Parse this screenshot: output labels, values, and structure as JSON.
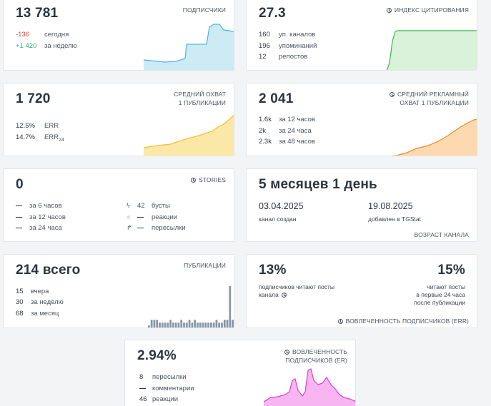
{
  "subscribers": {
    "value": "13 781",
    "label": "ПОДПИСЧИКИ",
    "today_delta": "-136",
    "today_label": "сегодня",
    "week_delta": "+1 420",
    "week_label": "за неделю",
    "colors": {
      "line": "#4bb7d9",
      "fill": "#cdeaf5"
    }
  },
  "citation": {
    "value": "27.3",
    "label": "ИНДЕКС ЦИТИРОВАНИЯ",
    "rows": [
      {
        "value": "160",
        "text": "уп. каналов"
      },
      {
        "value": "196",
        "text": "упоминаний"
      },
      {
        "value": "12",
        "text": "репостов"
      }
    ],
    "colors": {
      "line": "#3bb54a",
      "fill": "#d9f2d9"
    }
  },
  "reach": {
    "value": "1 720",
    "label_line1": "СРЕДНИЙ ОХВАТ",
    "label_line2": "1 ПУБЛИКАЦИИ",
    "err_value": "12.5%",
    "err_label": "ERR",
    "err24_value": "14.7%",
    "err24_label": "ERR",
    "err24_sub": "24",
    "colors": {
      "line": "#f2c12e",
      "fill": "#fbe8a6"
    }
  },
  "ad_reach": {
    "value": "2 041",
    "label_line1": "СРЕДНИЙ РЕКЛАМНЫЙ",
    "label_line2": "ОХВАТ 1 ПУБЛИКАЦИИ",
    "rows": [
      {
        "value": "1.6k",
        "text": "за 12 часов"
      },
      {
        "value": "2k",
        "text": "за 24 часа"
      },
      {
        "value": "2.3k",
        "text": "за 48 часов"
      }
    ],
    "colors": {
      "line": "#ef8a1e",
      "fill": "#fcd9b0"
    }
  },
  "stories": {
    "value": "0",
    "label": "STORIES",
    "left_rows": [
      {
        "text": "за 6 часов"
      },
      {
        "text": "за 12 часов"
      },
      {
        "text": "за 24 часа"
      }
    ],
    "right_rows": [
      {
        "icon": "bolt-icon",
        "glyph": "ϟ",
        "value": "42",
        "text": "бусты"
      },
      {
        "icon": "thumbs-up-icon",
        "glyph": "👍",
        "value": "",
        "text": "реакции"
      },
      {
        "icon": "share-arrow-icon",
        "glyph": "↱",
        "value": "",
        "text": "пересылки"
      }
    ]
  },
  "age": {
    "value": "5 месяцев 1 день",
    "created_date": "03.04.2025",
    "created_label": "канал создан",
    "added_date": "19.08.2025",
    "added_label": "добавлен в TGStat",
    "label": "ВОЗРАСТ КАНАЛА"
  },
  "posts": {
    "value": "214 всего",
    "label": "ПУБЛИКАЦИИ",
    "rows": [
      {
        "value": "15",
        "text": "вчера"
      },
      {
        "value": "30",
        "text": "за неделю"
      },
      {
        "value": "68",
        "text": "за месяц"
      }
    ],
    "bar_values": [
      1,
      3,
      3,
      3,
      2,
      2,
      2,
      2,
      3,
      2,
      2,
      2,
      3,
      2,
      2,
      3,
      2,
      3,
      2,
      2,
      2,
      2,
      2,
      2,
      2,
      3,
      2,
      2,
      3,
      3,
      15,
      3
    ],
    "colors": {
      "bar": "#8797a8"
    }
  },
  "engagement": {
    "left_value": "13%",
    "left_text_line1": "подписчиков читают посты",
    "left_text_line2": "канала",
    "right_value": "15%",
    "right_text_line1": "читают посты",
    "right_text_line2": "в первые 24 часа",
    "right_text_line3": "после публикации",
    "label": "ВОВЛЕЧЕННОСТЬ ПОДПИСЧИКОВ (ERR)"
  },
  "er": {
    "value": "2.94%",
    "label_line1": "ВОВЛЕЧЕННОСТЬ",
    "label_line2": "ПОДПИСЧИКОВ (ER)",
    "rows": [
      {
        "value": "8",
        "text": "пересылки"
      },
      {
        "value": "",
        "text": "комментарии"
      },
      {
        "value": "46",
        "text": "реакции"
      }
    ],
    "colors": {
      "line": "#e23ad8",
      "fill": "#f7b5f2"
    }
  }
}
